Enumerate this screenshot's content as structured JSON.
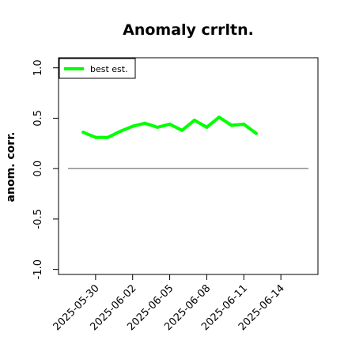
{
  "chart_data": {
    "type": "line",
    "title": "Anomaly crrltn.",
    "xlabel": "",
    "ylabel": "anom. corr.",
    "x_ticks": [
      "2025-05-30",
      "2025-06-02",
      "2025-06-05",
      "2025-06-08",
      "2025-06-11",
      "2025-06-14"
    ],
    "y_ticks": [
      "-1.0",
      "-0.5",
      "0.0",
      "0.5",
      "1.0"
    ],
    "ylim": [
      -1.05,
      1.1
    ],
    "xlim": [
      "2025-05-27",
      "2025-06-17"
    ],
    "reference_line": 0.0,
    "legend_position": "top-left",
    "grid": false,
    "series": [
      {
        "name": "best est.",
        "color": "#00ff00",
        "x": [
          "2025-05-29",
          "2025-05-30",
          "2025-05-31",
          "2025-06-01",
          "2025-06-02",
          "2025-06-03",
          "2025-06-04",
          "2025-06-05",
          "2025-06-06",
          "2025-06-07",
          "2025-06-08",
          "2025-06-09",
          "2025-06-10",
          "2025-06-11",
          "2025-06-12"
        ],
        "values": [
          0.36,
          0.31,
          0.31,
          0.37,
          0.42,
          0.45,
          0.41,
          0.44,
          0.38,
          0.48,
          0.41,
          0.51,
          0.43,
          0.44,
          0.35
        ]
      }
    ]
  }
}
